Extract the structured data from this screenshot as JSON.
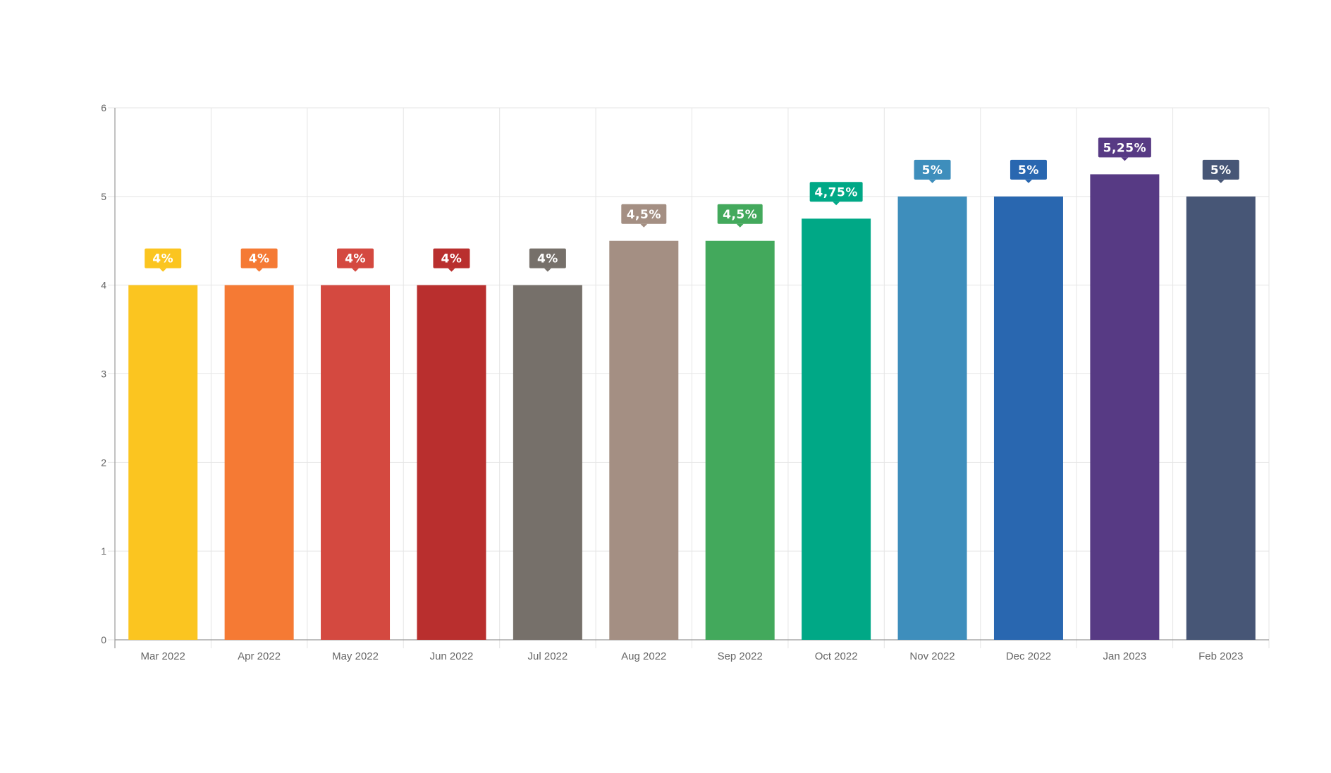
{
  "chart_data": {
    "type": "bar",
    "title": "",
    "xlabel": "",
    "ylabel": "",
    "ylim": [
      0,
      6
    ],
    "yticks": [
      "0",
      "1",
      "2",
      "3",
      "4",
      "5",
      "6"
    ],
    "grid": true,
    "legend": "none",
    "categories": [
      "Mar 2022",
      "Apr 2022",
      "May 2022",
      "Jun 2022",
      "Jul 2022",
      "Aug 2022",
      "Sep 2022",
      "Oct 2022",
      "Nov 2022",
      "Dec 2022",
      "Jan 2023",
      "Feb 2023"
    ],
    "values": [
      4,
      4,
      4,
      4,
      4,
      4.5,
      4.5,
      4.75,
      5,
      5,
      5.25,
      5
    ],
    "data_labels": [
      "4%",
      "4%",
      "4%",
      "4%",
      "4%",
      "4,5%",
      "4,5%",
      "4,75%",
      "5%",
      "5%",
      "5,25%",
      "5%"
    ],
    "colors": [
      "#FBC520",
      "#F57A34",
      "#D44940",
      "#B92F2E",
      "#76706A",
      "#A48F83",
      "#43A95C",
      "#00A886",
      "#3E8EBC",
      "#2967B0",
      "#573A84",
      "#475676"
    ],
    "grid_color": "#e5e5e5",
    "axis_color": "#999999"
  }
}
